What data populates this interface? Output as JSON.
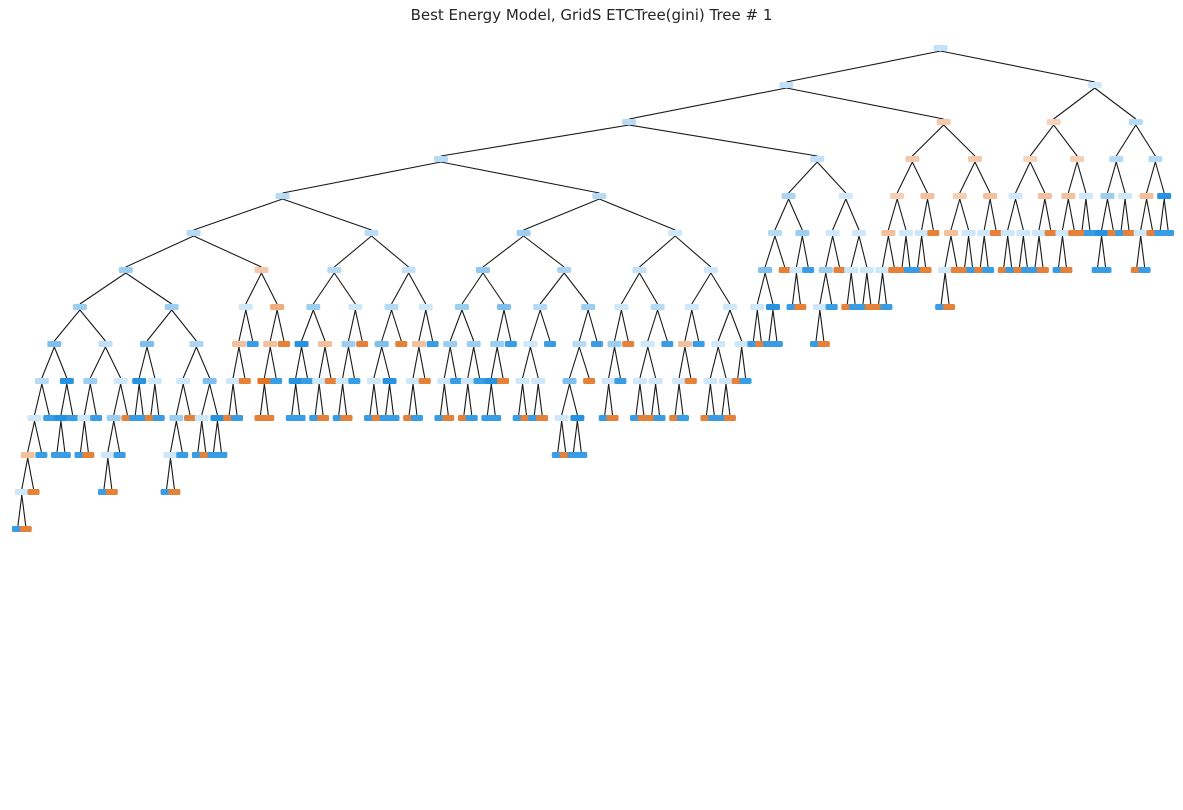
{
  "title": "Best Energy Model, GridS ETCTree(gini) Tree # 1",
  "colors": {
    "class_0": "#e58139",
    "class_1": "#399de5",
    "edge": "#1a1a1a",
    "background": "#ffffff",
    "title": "#262626"
  },
  "tree": {
    "root": [
      [
        [
          [
            [
              [
                [
                  [
                    [
                      [
                        [
                          [
                            [
                              "b",
                              "o"
                            ],
                            "o"
                          ],
                          "b"
                        ],
                        "b"
                      ],
                      [
                        [
                          "b",
                          "b"
                        ],
                        "b"
                      ]
                    ],
                    [
                      [
                        [
                          "b",
                          "o"
                        ],
                        "b"
                      ],
                      [
                        [
                          [
                            "b",
                            "o"
                          ],
                          "b"
                        ],
                        "o"
                      ]
                    ]
                  ],
                  [
                    [
                      [
                        "b",
                        "b"
                      ],
                      [
                        "o",
                        "b"
                      ]
                    ],
                    [
                      [
                        [
                          [
                            "b",
                            "o"
                          ],
                          "b"
                        ],
                        "o"
                      ],
                      [
                        [
                          "b",
                          "o"
                        ],
                        [
                          "b",
                          "b"
                        ]
                      ]
                    ]
                  ]
                ],
                [
                  [
                    [
                      [
                        "o",
                        "b"
                      ],
                      "o"
                    ],
                    "b"
                  ],
                  [
                    [
                      [
                        "o",
                        "o"
                      ],
                      "b"
                    ],
                    "o"
                  ]
                ]
              ],
              [
                [
                  [
                    [
                      [
                        "b",
                        "b"
                      ],
                      "b"
                    ],
                    [
                      [
                        "b",
                        "o"
                      ],
                      "o"
                    ]
                  ],
                  [
                    [
                      [
                        "b",
                        "o"
                      ],
                      "b"
                    ],
                    "o"
                  ]
                ],
                [
                  [
                    [
                      [
                        "b",
                        "o"
                      ],
                      [
                        "b",
                        "b"
                      ]
                    ],
                    "o"
                  ],
                  [
                    [
                      [
                        "o",
                        "b"
                      ],
                      "o"
                    ],
                    "b"
                  ]
                ]
              ]
            ],
            [
              [
                [
                  [
                    [
                      [
                        "b",
                        "o"
                      ],
                      "b"
                    ],
                    [
                      [
                        "o",
                        "b"
                      ],
                      "b"
                    ]
                  ],
                  [
                    [
                      [
                        "b",
                        "b"
                      ],
                      "o"
                    ],
                    "b"
                  ]
                ],
                [
                  [
                    [
                      [
                        "b",
                        "o"
                      ],
                      [
                        "b",
                        "o"
                      ]
                    ],
                    "b"
                  ],
                  [
                    [
                      [
                        [
                          "b",
                          "o"
                        ],
                        [
                          "b",
                          "b"
                        ]
                      ],
                      "o"
                    ],
                    "b"
                  ]
                ]
              ],
              [
                [
                  [
                    [
                      [
                        "b",
                        "o"
                      ],
                      "b"
                    ],
                    "o"
                  ],
                  [
                    [
                      [
                        "b",
                        "o"
                      ],
                      [
                        "o",
                        "b"
                      ]
                    ],
                    "b"
                  ]
                ],
                [
                  [
                    [
                      [
                        "o",
                        "b"
                      ],
                      "o"
                    ],
                    "b"
                  ],
                  [
                    [
                      [
                        "o",
                        "b"
                      ],
                      [
                        "b",
                        "o"
                      ]
                    ],
                    [
                      "o",
                      "b"
                    ]
                  ]
                ]
              ]
            ]
          ],
          [
            [
              [
                [
                  [
                    "b",
                    "o"
                  ],
                  [
                    "b",
                    "b"
                  ]
                ],
                "o"
              ],
              [
                [
                  "b",
                  "o"
                ],
                "b"
              ]
            ],
            [
              [
                [
                  [
                    "b",
                    "o"
                  ],
                  "b"
                ],
                "o"
              ],
              [
                [
                  "o",
                  "b"
                ],
                [
                  "b",
                  "o"
                ]
              ]
            ]
          ]
        ],
        [
          [
            [
              [
                [
                  "o",
                  "b"
                ],
                "o"
              ],
              [
                "o",
                "b"
              ]
            ],
            [
              [
                "b",
                "o"
              ],
              "o"
            ]
          ],
          [
            [
              [
                [
                  "b",
                  "o"
                ],
                "o"
              ],
              [
                "o",
                "b"
              ]
            ],
            [
              [
                "o",
                "b"
              ],
              "o"
            ]
          ]
        ]
      ],
      [
        [
          [
            [
              [
                "o",
                "b"
              ],
              [
                "o",
                "b"
              ]
            ],
            [
              [
                "b",
                "o"
              ],
              "o"
            ]
          ],
          [
            [
              [
                "b",
                "o"
              ],
              "o"
            ],
            [
              "o",
              "b"
            ]
          ]
        ],
        [
          [
            [
              [
                "b",
                "b"
              ],
              "o"
            ],
            [
              "b",
              "o"
            ]
          ],
          [
            [
              [
                "o",
                "b"
              ],
              "o"
            ],
            [
              "b",
              "b"
            ]
          ]
        ]
      ]
    ]
  }
}
